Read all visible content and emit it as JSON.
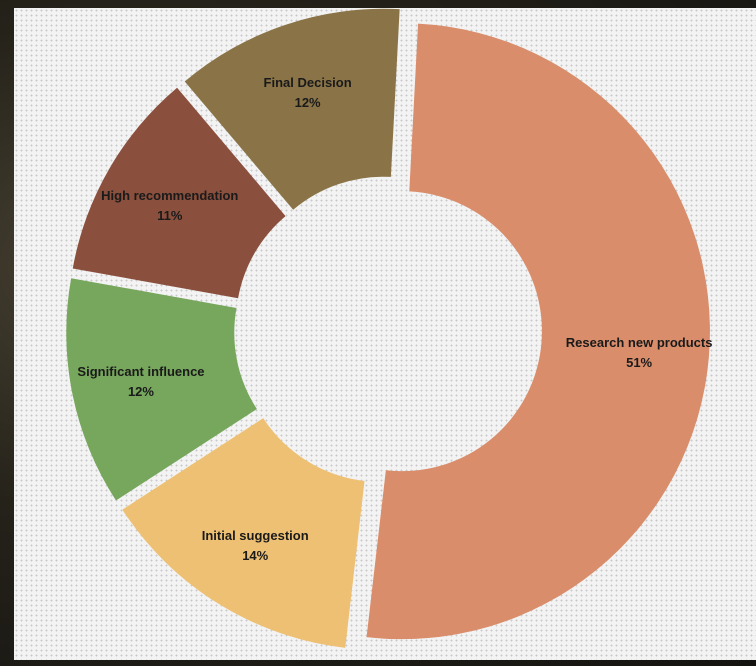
{
  "chart_data": {
    "type": "pie",
    "variant": "donut",
    "legend": "none",
    "slices": [
      {
        "name": "Research new products",
        "value": 51,
        "label": "51%",
        "color": "#d98d6b"
      },
      {
        "name": "Initial suggestion",
        "value": 14,
        "label": "14%",
        "color": "#eec073"
      },
      {
        "name": "Significant influence",
        "value": 12,
        "label": "12%",
        "color": "#77a65d"
      },
      {
        "name": "High recommendation",
        "value": 11,
        "label": "11%",
        "color": "#8a4f3d"
      },
      {
        "name": "Final Decision",
        "value": 12,
        "label": "12%",
        "color": "#8a7447"
      }
    ]
  }
}
